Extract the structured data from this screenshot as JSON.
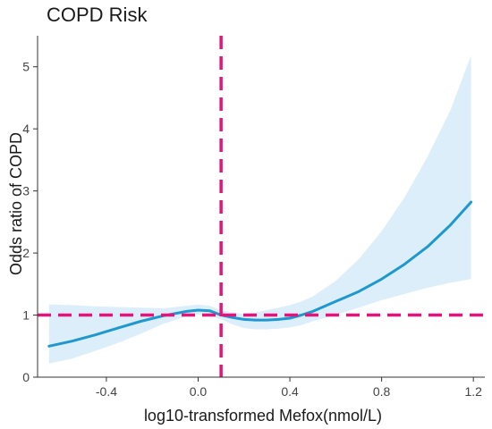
{
  "chart_data": {
    "type": "line",
    "title": "COPD Risk",
    "xlabel": "log10-transformed Mefox(nmol/L)",
    "ylabel": "Odds ratio of COPD",
    "xlim": [
      -0.7,
      1.25
    ],
    "ylim": [
      0,
      5.5
    ],
    "x_ticks": [
      -0.4,
      0.0,
      0.4,
      0.8,
      1.2
    ],
    "x_tick_labels": [
      "-0.4",
      "0.0",
      "0.4",
      "0.8",
      "1.2"
    ],
    "y_ticks": [
      0,
      1,
      2,
      3,
      4,
      5
    ],
    "y_tick_labels": [
      "0",
      "1",
      "2",
      "3",
      "4",
      "5"
    ],
    "grid": false,
    "series": [
      {
        "x": [
          -0.65,
          -0.55,
          -0.45,
          -0.35,
          -0.25,
          -0.15,
          -0.05,
          0.0,
          0.05,
          0.1,
          0.15,
          0.2,
          0.25,
          0.3,
          0.35,
          0.4,
          0.45,
          0.5,
          0.6,
          0.7,
          0.8,
          0.9,
          1.0,
          1.1,
          1.19
        ],
        "y": [
          0.5,
          0.58,
          0.68,
          0.79,
          0.9,
          0.99,
          1.06,
          1.08,
          1.07,
          1.0,
          0.96,
          0.93,
          0.92,
          0.92,
          0.93,
          0.95,
          1.0,
          1.06,
          1.22,
          1.38,
          1.58,
          1.82,
          2.1,
          2.45,
          2.82
        ],
        "lower": [
          0.22,
          0.3,
          0.42,
          0.55,
          0.7,
          0.86,
          0.98,
          1.01,
          0.99,
          0.93,
          0.85,
          0.79,
          0.77,
          0.77,
          0.78,
          0.8,
          0.84,
          0.9,
          1.0,
          1.12,
          1.24,
          1.34,
          1.44,
          1.52,
          1.58
        ],
        "upper": [
          1.17,
          1.16,
          1.14,
          1.13,
          1.12,
          1.11,
          1.15,
          1.17,
          1.15,
          1.08,
          1.04,
          1.02,
          1.04,
          1.08,
          1.12,
          1.16,
          1.22,
          1.3,
          1.55,
          1.9,
          2.35,
          2.9,
          3.55,
          4.3,
          5.18
        ],
        "color": "#1f98cf",
        "band_color": "#dceefa"
      }
    ],
    "reference_lines": [
      {
        "orientation": "horizontal",
        "value": 1.0,
        "style": "dashed",
        "color": "#e6137b"
      },
      {
        "orientation": "vertical",
        "value": 0.1,
        "style": "dashed",
        "color": "#e6137b"
      }
    ]
  }
}
